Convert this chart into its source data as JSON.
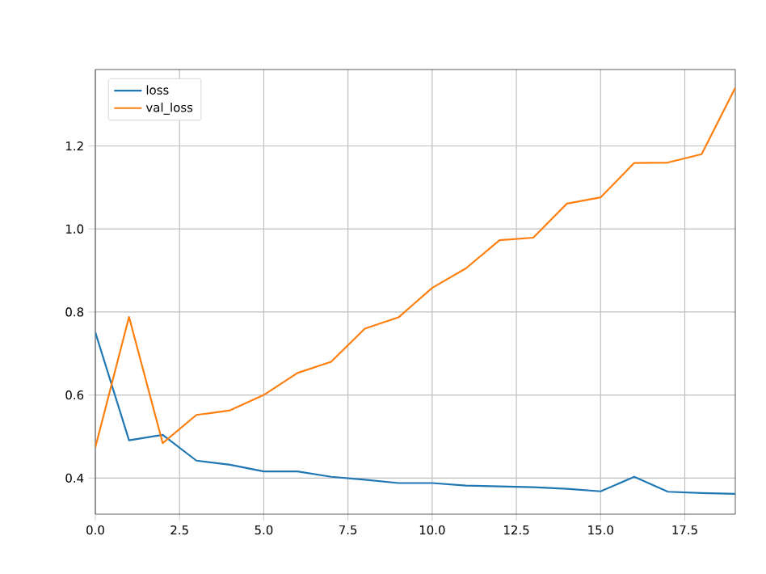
{
  "chart_data": {
    "type": "line",
    "x": [
      0,
      1,
      2,
      3,
      4,
      5,
      6,
      7,
      8,
      9,
      10,
      11,
      12,
      13,
      14,
      15,
      16,
      17,
      18,
      19
    ],
    "series": [
      {
        "name": "loss",
        "color": "#1f77b4",
        "values": [
          0.751,
          0.491,
          0.504,
          0.442,
          0.432,
          0.416,
          0.416,
          0.403,
          0.396,
          0.388,
          0.388,
          0.382,
          0.38,
          0.378,
          0.374,
          0.368,
          0.403,
          0.367,
          0.364,
          0.362
        ]
      },
      {
        "name": "val_loss",
        "color": "#ff7f0e",
        "values": [
          0.474,
          0.788,
          0.484,
          0.552,
          0.563,
          0.6,
          0.653,
          0.68,
          0.76,
          0.787,
          0.858,
          0.905,
          0.973,
          0.979,
          1.061,
          1.076,
          1.159,
          1.16,
          1.18,
          1.34
        ]
      }
    ],
    "xlim": [
      0,
      19
    ],
    "ylim": [
      0.313,
      1.384
    ],
    "xticks": [
      {
        "value": 0,
        "label": "0.0"
      },
      {
        "value": 2.5,
        "label": "2.5"
      },
      {
        "value": 5,
        "label": "5.0"
      },
      {
        "value": 7.5,
        "label": "7.5"
      },
      {
        "value": 10,
        "label": "10.0"
      },
      {
        "value": 12.5,
        "label": "12.5"
      },
      {
        "value": 15,
        "label": "15.0"
      },
      {
        "value": 17.5,
        "label": "17.5"
      }
    ],
    "yticks": [
      {
        "value": 0.4,
        "label": "0.4"
      },
      {
        "value": 0.6,
        "label": "0.6"
      },
      {
        "value": 0.8,
        "label": "0.8"
      },
      {
        "value": 1.0,
        "label": "1.0"
      },
      {
        "value": 1.2,
        "label": "1.2"
      }
    ],
    "grid": true,
    "legend": "top left",
    "marker": "none",
    "line_style": "solid"
  }
}
